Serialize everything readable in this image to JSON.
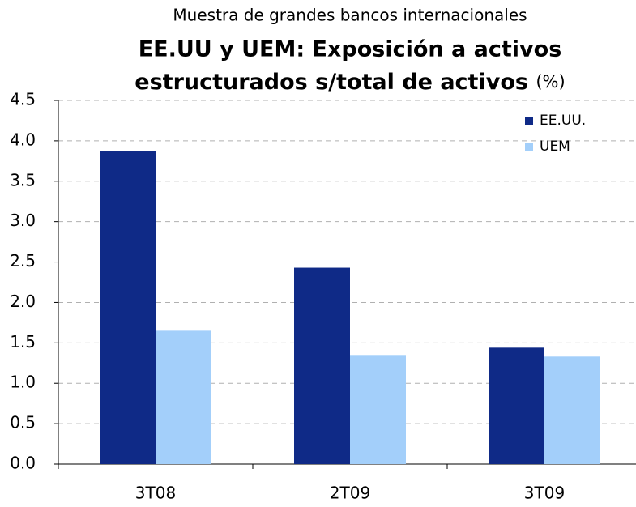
{
  "chart_data": {
    "type": "bar",
    "subtitle": "Muestra de grandes bancos internacionales",
    "title": [
      "EE.UU y UEM: Exposición a activos",
      "estructurados s/total de activos"
    ],
    "unit": "(%)",
    "categories": [
      "3T08",
      "2T09",
      "3T09"
    ],
    "series": [
      {
        "name": "EE.UU.",
        "color": "#0f2a87",
        "values": [
          3.87,
          2.43,
          1.44
        ]
      },
      {
        "name": "UEM",
        "color": "#a3cffa",
        "values": [
          1.65,
          1.35,
          1.33
        ]
      }
    ],
    "ylim": [
      0,
      4.5
    ],
    "yticks": [
      {
        "value": 0,
        "label": "0.0"
      },
      0.5,
      {
        "value": 1,
        "label": "1.0"
      },
      1.5,
      {
        "value": 2,
        "label": "2.0"
      },
      2.5,
      {
        "value": 3,
        "label": "3.0"
      },
      3.5,
      {
        "value": 4,
        "label": "4.0"
      },
      4.5
    ],
    "grid": true,
    "legend": "top-right"
  }
}
